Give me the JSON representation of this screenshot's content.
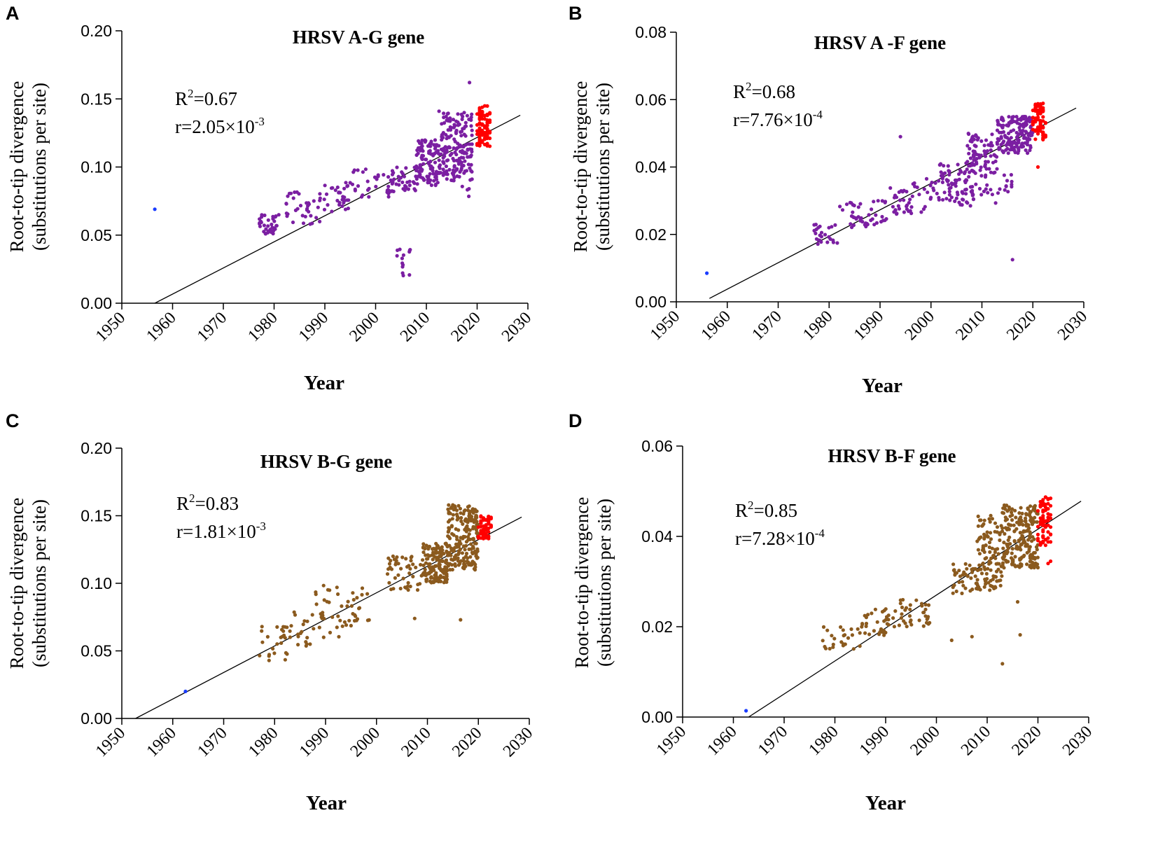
{
  "figure_labels": [
    "A",
    "B",
    "C",
    "D"
  ],
  "chart_data": [
    {
      "panel": "A",
      "type": "scatter",
      "title": "HRSV A-G gene",
      "xlabel": "Year",
      "ylabel_line1": "Root-to-tip divergence",
      "ylabel_line2": "(substitutions per site)",
      "xlim": [
        1950,
        2030
      ],
      "ylim": [
        0,
        0.2
      ],
      "xticks": [
        "1950",
        "1960",
        "1970",
        "1980",
        "1990",
        "2000",
        "2010",
        "2020",
        "2030"
      ],
      "yticks": [
        "0.00",
        "0.05",
        "0.10",
        "0.15",
        "0.20"
      ],
      "r2_label": "R",
      "r2_sup": "2",
      "r2_value": "=0.67",
      "rate_label": "r=2.05×10",
      "rate_exp": "-3",
      "regression": {
        "x": [
          1956.5,
          2028.5
        ],
        "y": [
          0.0,
          0.138
        ]
      },
      "colors": {
        "main": "#7b1fa2",
        "recent": "#ff0000",
        "reference": "#1a3cff",
        "line": "#000000"
      },
      "reference_point": {
        "x": 1956.5,
        "y": 0.069
      },
      "clusters": [
        {
          "x": [
            1977,
            1981
          ],
          "y": [
            0.05,
            0.065
          ],
          "n": 35
        },
        {
          "x": [
            1982,
            1989
          ],
          "y": [
            0.058,
            0.082
          ],
          "n": 35
        },
        {
          "x": [
            1989,
            1995
          ],
          "y": [
            0.066,
            0.09
          ],
          "n": 35
        },
        {
          "x": [
            1995,
            2003
          ],
          "y": [
            0.078,
            0.1
          ],
          "n": 30
        },
        {
          "x": [
            2003,
            2008
          ],
          "y": [
            0.082,
            0.1
          ],
          "n": 40
        },
        {
          "x": [
            2004,
            2007
          ],
          "y": [
            0.019,
            0.04
          ],
          "n": 14
        },
        {
          "x": [
            2008,
            2013
          ],
          "y": [
            0.085,
            0.12
          ],
          "n": 110
        },
        {
          "x": [
            2013,
            2019
          ],
          "y": [
            0.09,
            0.14
          ],
          "n": 170
        },
        {
          "x": [
            2017,
            2019
          ],
          "y": [
            0.075,
            0.09
          ],
          "n": 4
        }
      ],
      "recent_cluster": {
        "x": [
          2020,
          2022.5
        ],
        "y": [
          0.115,
          0.145
        ],
        "n": 95
      },
      "extra_points": [
        {
          "x": 2012.5,
          "y": 0.141
        },
        {
          "x": 2018.5,
          "y": 0.162
        }
      ]
    },
    {
      "panel": "B",
      "type": "scatter",
      "title": "HRSV A -F gene",
      "xlabel": "Year",
      "ylabel_line1": "Root-to-tip divergence",
      "ylabel_line2": "(substitutions per site)",
      "xlim": [
        1950,
        2030
      ],
      "ylim": [
        0,
        0.08
      ],
      "xticks": [
        "1950",
        "1960",
        "1970",
        "1980",
        "1990",
        "2000",
        "2010",
        "2020",
        "2030"
      ],
      "yticks": [
        "0.00",
        "0.02",
        "0.04",
        "0.06",
        "0.08"
      ],
      "r2_label": "R",
      "r2_sup": "2",
      "r2_value": "=0.68",
      "rate_label": "r=7.76×10",
      "rate_exp": "-4",
      "regression": {
        "x": [
          1956.5,
          2028.5
        ],
        "y": [
          0.001,
          0.0575
        ]
      },
      "colors": {
        "main": "#7b1fa2",
        "recent": "#ff0000",
        "reference": "#1a3cff",
        "line": "#000000"
      },
      "reference_point": {
        "x": 1956,
        "y": 0.0085
      },
      "clusters": [
        {
          "x": [
            1977,
            1982
          ],
          "y": [
            0.017,
            0.023
          ],
          "n": 25
        },
        {
          "x": [
            1982,
            1992
          ],
          "y": [
            0.022,
            0.03
          ],
          "n": 45
        },
        {
          "x": [
            1992,
            1999
          ],
          "y": [
            0.026,
            0.036
          ],
          "n": 40
        },
        {
          "x": [
            1999,
            2007
          ],
          "y": [
            0.03,
            0.042
          ],
          "n": 45
        },
        {
          "x": [
            2003,
            2013
          ],
          "y": [
            0.028,
            0.039
          ],
          "n": 60
        },
        {
          "x": [
            2007,
            2013
          ],
          "y": [
            0.038,
            0.05
          ],
          "n": 80
        },
        {
          "x": [
            2013,
            2020
          ],
          "y": [
            0.044,
            0.055
          ],
          "n": 160
        },
        {
          "x": [
            2013,
            2016
          ],
          "y": [
            0.031,
            0.038
          ],
          "n": 12
        }
      ],
      "recent_cluster": {
        "x": [
          2020,
          2022.5
        ],
        "y": [
          0.048,
          0.059
        ],
        "n": 90
      },
      "extra_points": [
        {
          "x": 1994,
          "y": 0.049
        },
        {
          "x": 2016,
          "y": 0.0125
        },
        {
          "x": 2021,
          "y": 0.04
        }
      ]
    },
    {
      "panel": "C",
      "type": "scatter",
      "title": "HRSV B-G gene",
      "xlabel": "Year",
      "ylabel_line1": "Root-to-tip divergence",
      "ylabel_line2": "(substitutions per site)",
      "xlim": [
        1950,
        2030
      ],
      "ylim": [
        0,
        0.2
      ],
      "xticks": [
        "1950",
        "1960",
        "1970",
        "1980",
        "1990",
        "2000",
        "2010",
        "2020",
        "2030"
      ],
      "yticks": [
        "0.00",
        "0.05",
        "0.10",
        "0.15",
        "0.20"
      ],
      "r2_label": "R",
      "r2_sup": "2",
      "r2_value": "=0.83",
      "rate_label": "r=1.81×10",
      "rate_exp": "-3",
      "regression": {
        "x": [
          1952.7,
          2028.5
        ],
        "y": [
          0.0,
          0.149
        ]
      },
      "colors": {
        "main": "#8b5a1e",
        "recent": "#ff0000",
        "reference": "#1a3cff",
        "line": "#000000"
      },
      "reference_point": {
        "x": 1962.5,
        "y": 0.02
      },
      "clusters": [
        {
          "x": [
            1977,
            1983
          ],
          "y": [
            0.042,
            0.068
          ],
          "n": 25
        },
        {
          "x": [
            1983,
            1988
          ],
          "y": [
            0.05,
            0.08
          ],
          "n": 20
        },
        {
          "x": [
            1988,
            1993
          ],
          "y": [
            0.06,
            0.1
          ],
          "n": 25
        },
        {
          "x": [
            1993,
            1999
          ],
          "y": [
            0.067,
            0.097
          ],
          "n": 25
        },
        {
          "x": [
            2002,
            2009
          ],
          "y": [
            0.095,
            0.12
          ],
          "n": 45
        },
        {
          "x": [
            2009,
            2014
          ],
          "y": [
            0.1,
            0.13
          ],
          "n": 140
        },
        {
          "x": [
            2014,
            2020
          ],
          "y": [
            0.11,
            0.158
          ],
          "n": 200
        }
      ],
      "recent_cluster": {
        "x": [
          2020,
          2022.5
        ],
        "y": [
          0.133,
          0.15
        ],
        "n": 60
      },
      "extra_points": [
        {
          "x": 2007.5,
          "y": 0.074
        },
        {
          "x": 2016.5,
          "y": 0.073
        }
      ]
    },
    {
      "panel": "D",
      "type": "scatter",
      "title": "HRSV B-F gene",
      "xlabel": "Year",
      "ylabel_line1": "Root-to-tip divergence",
      "ylabel_line2": "(substitutions per site)",
      "xlim": [
        1950,
        2030
      ],
      "ylim": [
        0,
        0.06
      ],
      "xticks": [
        "1950",
        "1960",
        "1970",
        "1980",
        "1990",
        "2000",
        "2010",
        "2020",
        "2030"
      ],
      "yticks": [
        "0.00",
        "0.02",
        "0.04",
        "0.06"
      ],
      "r2_label": "R",
      "r2_sup": "2",
      "r2_value": "=0.85",
      "rate_label": "r=7.28×10",
      "rate_exp": "-4",
      "regression": {
        "x": [
          1963,
          2028.5
        ],
        "y": [
          0.0,
          0.0478
        ]
      },
      "colors": {
        "main": "#8b5a1e",
        "recent": "#ff0000",
        "reference": "#1a3cff",
        "line": "#000000"
      },
      "reference_point": {
        "x": 1962.5,
        "y": 0.0014
      },
      "clusters": [
        {
          "x": [
            1977,
            1985
          ],
          "y": [
            0.015,
            0.02
          ],
          "n": 25
        },
        {
          "x": [
            1985,
            1992
          ],
          "y": [
            0.018,
            0.024
          ],
          "n": 35
        },
        {
          "x": [
            1992,
            1999
          ],
          "y": [
            0.02,
            0.026
          ],
          "n": 35
        },
        {
          "x": [
            2003,
            2008
          ],
          "y": [
            0.027,
            0.034
          ],
          "n": 35
        },
        {
          "x": [
            2008,
            2013
          ],
          "y": [
            0.028,
            0.045
          ],
          "n": 110
        },
        {
          "x": [
            2013,
            2020
          ],
          "y": [
            0.033,
            0.047
          ],
          "n": 200
        }
      ],
      "recent_cluster": {
        "x": [
          2020,
          2022.5
        ],
        "y": [
          0.038,
          0.049
        ],
        "n": 70
      },
      "extra_points": [
        {
          "x": 2003,
          "y": 0.017
        },
        {
          "x": 2007,
          "y": 0.0178
        },
        {
          "x": 2013,
          "y": 0.0118
        },
        {
          "x": 2016,
          "y": 0.0255
        },
        {
          "x": 2016.5,
          "y": 0.0182
        },
        {
          "x": 2022,
          "y": 0.034
        },
        {
          "x": 2022.5,
          "y": 0.0345
        }
      ]
    }
  ]
}
